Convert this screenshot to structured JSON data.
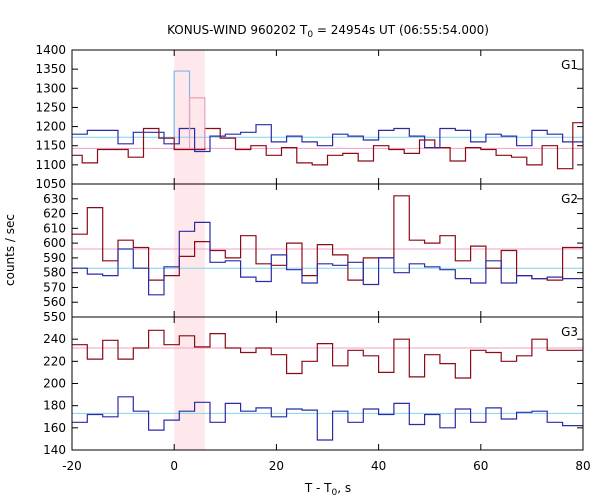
{
  "chart_data": {
    "type": "line",
    "title": "KONUS-WIND 960202 T",
    "title_sub": "0",
    "title_rest": " = 24954s UT (06:55:54.000)",
    "xlabel": "T - T",
    "xlabel_sub": "0",
    "xlabel_rest": ", s",
    "ylabel": "counts / sec",
    "xlim": [
      -20,
      80
    ],
    "xticks": [
      "-20",
      "0",
      "20",
      "40",
      "60",
      "80"
    ],
    "highlight": {
      "x0": 0,
      "x1": 6,
      "color": "#ffe8ec"
    },
    "colors": {
      "red": "#8b0a14",
      "blue": "#2b2ba8",
      "pink": "#f0a0c8",
      "cyan": "#7ed4ee",
      "light_blue": "#7fb8f0",
      "light_pink": "#e8a0c0"
    },
    "panels": [
      {
        "name": "G1",
        "ylim": [
          1050,
          1400
        ],
        "yticks": [
          "1050",
          "1100",
          "1150",
          "1200",
          "1250",
          "1300",
          "1350",
          "1400"
        ],
        "bg_red": 1143,
        "bg_blue": 1172,
        "red_edges": [
          -20,
          -18,
          -15,
          -12,
          -9,
          -6,
          -3,
          0,
          3,
          6,
          9,
          12,
          15,
          18,
          21,
          24,
          27,
          30,
          33,
          36,
          39,
          42,
          45,
          48,
          51,
          54,
          57,
          60,
          63,
          66,
          69,
          72,
          75,
          78,
          80
        ],
        "red": [
          1125,
          1105,
          1140,
          1140,
          1120,
          1195,
          1170,
          1140,
          1140,
          1195,
          1170,
          1140,
          1150,
          1125,
          1145,
          1105,
          1100,
          1125,
          1130,
          1110,
          1150,
          1140,
          1130,
          1165,
          1145,
          1110,
          1145,
          1140,
          1125,
          1120,
          1100,
          1150,
          1090,
          1210
        ],
        "blue_edges": [
          -20,
          -17,
          -14,
          -11,
          -8,
          -5,
          -2,
          1,
          4,
          7,
          10,
          13,
          16,
          19,
          22,
          25,
          28,
          31,
          34,
          37,
          40,
          43,
          46,
          49,
          52,
          55,
          58,
          61,
          64,
          67,
          70,
          73,
          76,
          80
        ],
        "blue": [
          1180,
          1190,
          1190,
          1155,
          1185,
          1185,
          1155,
          1195,
          1135,
          1175,
          1180,
          1185,
          1205,
          1160,
          1175,
          1160,
          1150,
          1180,
          1175,
          1165,
          1190,
          1195,
          1175,
          1145,
          1195,
          1190,
          1160,
          1180,
          1175,
          1150,
          1190,
          1180,
          1160
        ],
        "peak_red_edges": [
          3,
          6
        ],
        "peak_red": [
          1275
        ],
        "peak_blue_edges": [
          0,
          3
        ],
        "peak_blue": [
          1345
        ]
      },
      {
        "name": "G2",
        "ylim": [
          550,
          640
        ],
        "yticks": [
          "550",
          "560",
          "570",
          "580",
          "590",
          "600",
          "610",
          "620",
          "630"
        ],
        "bg_red": 596,
        "bg_blue": 583,
        "red_edges": [
          -20,
          -17,
          -14,
          -11,
          -8,
          -5,
          -2,
          1,
          4,
          7,
          10,
          13,
          16,
          19,
          22,
          25,
          28,
          31,
          34,
          37,
          40,
          43,
          46,
          49,
          52,
          55,
          58,
          61,
          64,
          67,
          70,
          73,
          76,
          80
        ],
        "red": [
          606,
          624,
          588,
          602,
          597,
          575,
          578,
          591,
          601,
          595,
          590,
          605,
          586,
          585,
          600,
          578,
          599,
          592,
          575,
          590,
          590,
          632,
          602,
          600,
          605,
          588,
          598,
          583,
          595,
          578,
          576,
          575,
          597
        ],
        "blue_edges": [
          -20,
          -17,
          -14,
          -11,
          -8,
          -5,
          -2,
          1,
          4,
          7,
          10,
          13,
          16,
          19,
          22,
          25,
          28,
          31,
          34,
          37,
          40,
          43,
          46,
          49,
          52,
          55,
          58,
          61,
          64,
          67,
          70,
          73,
          76,
          80
        ],
        "blue": [
          583,
          579,
          578,
          596,
          583,
          565,
          584,
          608,
          614,
          587,
          588,
          577,
          574,
          592,
          582,
          573,
          586,
          585,
          587,
          572,
          590,
          580,
          586,
          584,
          582,
          576,
          573,
          588,
          573,
          578,
          576,
          577,
          576
        ]
      },
      {
        "name": "G3",
        "ylim": [
          140,
          260
        ],
        "yticks": [
          "140",
          "160",
          "180",
          "200",
          "220",
          "240"
        ],
        "bg_red": 232,
        "bg_blue": 173,
        "red_edges": [
          -20,
          -17,
          -14,
          -11,
          -8,
          -5,
          -2,
          1,
          4,
          7,
          10,
          13,
          16,
          19,
          22,
          25,
          28,
          31,
          34,
          37,
          40,
          43,
          46,
          49,
          52,
          55,
          58,
          61,
          64,
          67,
          70,
          73,
          76,
          80
        ],
        "red": [
          235,
          222,
          239,
          222,
          232,
          248,
          235,
          243,
          233,
          245,
          232,
          228,
          232,
          226,
          209,
          220,
          236,
          216,
          230,
          225,
          210,
          240,
          206,
          226,
          218,
          205,
          230,
          228,
          220,
          225,
          240,
          230,
          230
        ],
        "blue_edges": [
          -20,
          -17,
          -14,
          -11,
          -8,
          -5,
          -2,
          1,
          4,
          7,
          10,
          13,
          16,
          19,
          22,
          25,
          28,
          31,
          34,
          37,
          40,
          43,
          46,
          49,
          52,
          55,
          58,
          61,
          64,
          67,
          70,
          73,
          76,
          80
        ],
        "blue": [
          165,
          172,
          170,
          188,
          175,
          158,
          167,
          175,
          183,
          165,
          182,
          175,
          178,
          170,
          177,
          176,
          149,
          175,
          165,
          177,
          172,
          182,
          163,
          172,
          160,
          177,
          165,
          178,
          168,
          174,
          175,
          165,
          162
        ]
      }
    ]
  }
}
